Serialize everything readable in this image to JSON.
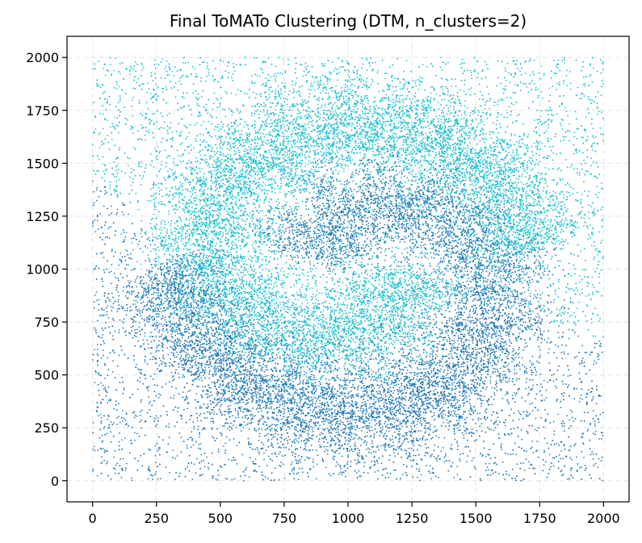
{
  "chart_data": {
    "type": "scatter",
    "title": "Final ToMATo Clustering (DTM, n_clusters=2)",
    "xlabel": "",
    "ylabel": "",
    "xlim": [
      -100,
      2100
    ],
    "ylim": [
      -100,
      2100
    ],
    "xticks": [
      0,
      250,
      500,
      750,
      1000,
      1250,
      1500,
      1750,
      2000
    ],
    "yticks": [
      0,
      250,
      500,
      750,
      1000,
      1250,
      1500,
      1750,
      2000
    ],
    "grid": true,
    "domain_x": [
      0,
      2000
    ],
    "domain_y": [
      0,
      2000
    ],
    "series": [
      {
        "cluster_id": 0,
        "color": "#1f77b4",
        "region": "lower background and lower swirl band",
        "band_path": [
          [
            250,
            1000
          ],
          [
            380,
            780
          ],
          [
            520,
            540
          ],
          [
            700,
            380
          ],
          [
            900,
            300
          ],
          [
            1100,
            310
          ],
          [
            1300,
            370
          ],
          [
            1450,
            500
          ],
          [
            1560,
            680
          ],
          [
            1590,
            900
          ],
          [
            1530,
            1110
          ],
          [
            1400,
            1250
          ],
          [
            1230,
            1330
          ],
          [
            1050,
            1310
          ],
          [
            900,
            1220
          ],
          [
            820,
            1050
          ]
        ]
      },
      {
        "cluster_id": 1,
        "color": "#17becf",
        "region": "upper background and upper swirl band",
        "band_path": [
          [
            1750,
            1100
          ],
          [
            1620,
            1330
          ],
          [
            1480,
            1540
          ],
          [
            1300,
            1650
          ],
          [
            1100,
            1710
          ],
          [
            900,
            1680
          ],
          [
            700,
            1590
          ],
          [
            520,
            1420
          ],
          [
            420,
            1230
          ],
          [
            430,
            1020
          ],
          [
            560,
            820
          ],
          [
            760,
            680
          ],
          [
            950,
            650
          ],
          [
            1120,
            700
          ],
          [
            1220,
            820
          ],
          [
            1250,
            990
          ]
        ]
      }
    ]
  }
}
